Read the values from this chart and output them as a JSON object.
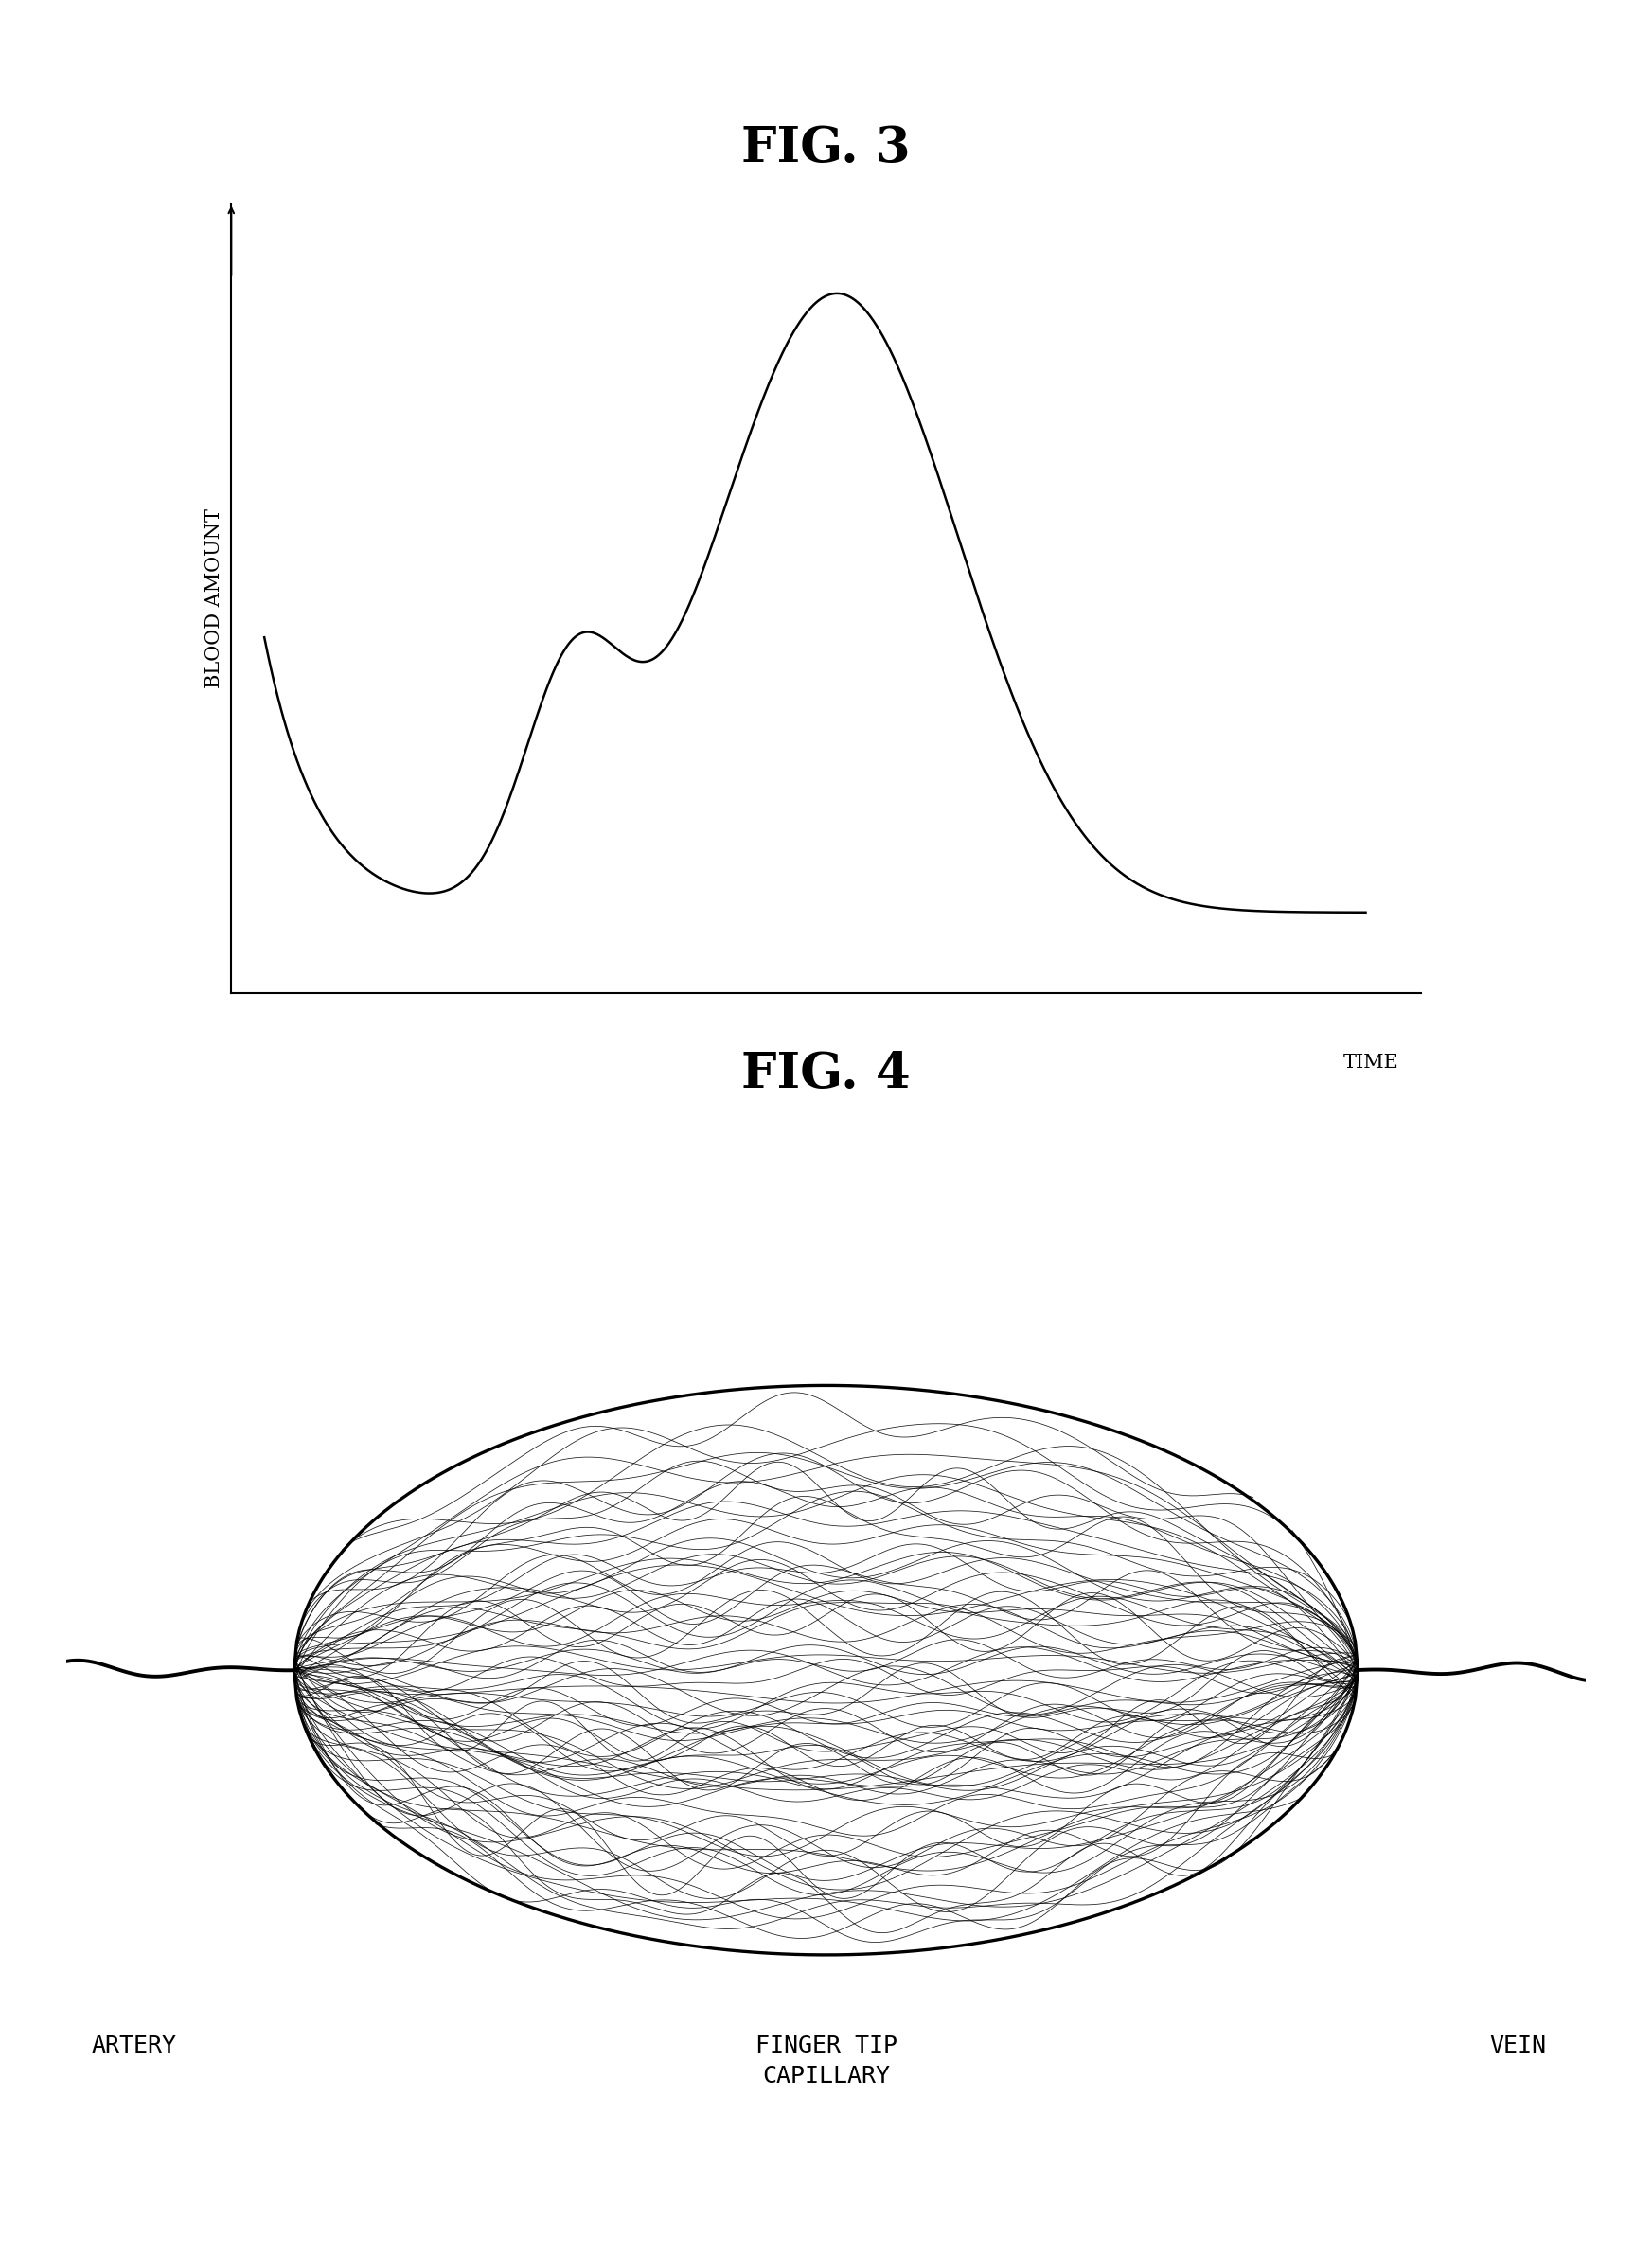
{
  "fig3_title": "FIG. 3",
  "fig4_title": "FIG. 4",
  "ylabel": "BLOOD AMOUNT",
  "xlabel": "TIME",
  "artery_label": "ARTERY",
  "capillary_label": "FINGER TIP\nCAPILLARY",
  "vein_label": "VEIN",
  "background_color": "#ffffff",
  "line_color": "#000000",
  "title_fontsize": 38,
  "label_fontsize": 18,
  "axis_label_fontsize": 15
}
